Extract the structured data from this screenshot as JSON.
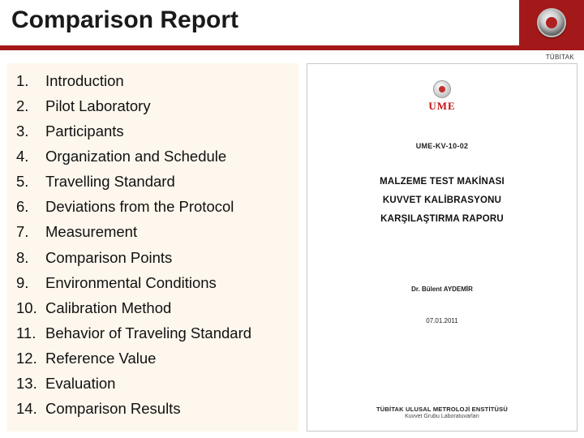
{
  "header": {
    "title": "Comparison Report",
    "org_label": "TÜBİTAK"
  },
  "colors": {
    "accent_red": "#a31919",
    "toc_background": "#fdf7ed",
    "panel_border": "#c9c9c9",
    "ume_red": "#c41414"
  },
  "toc": {
    "items": [
      {
        "num": "1.",
        "label": "Introduction"
      },
      {
        "num": "2.",
        "label": "Pilot Laboratory"
      },
      {
        "num": "3.",
        "label": "Participants"
      },
      {
        "num": "4.",
        "label": "Organization and Schedule"
      },
      {
        "num": "5.",
        "label": "Travelling Standard"
      },
      {
        "num": "6.",
        "label": "Deviations from the Protocol"
      },
      {
        "num": "7.",
        "label": "Measurement"
      },
      {
        "num": "8.",
        "label": "Comparison Points"
      },
      {
        "num": "9.",
        "label": "Environmental Conditions"
      },
      {
        "num": "10.",
        "label": "Calibration Method"
      },
      {
        "num": "11.",
        "label": "Behavior of Traveling Standard"
      },
      {
        "num": "12.",
        "label": "Reference Value"
      },
      {
        "num": "13.",
        "label": "Evaluation"
      },
      {
        "num": "14.",
        "label": "Comparison Results"
      }
    ]
  },
  "document": {
    "ume_label": "UME",
    "code": "UME-KV-10-02",
    "title_lines": [
      "MALZEME TEST MAKİNASI",
      "KUVVET KALİBRASYONU",
      "KARŞILAŞTIRMA RAPORU"
    ],
    "author": "Dr. Bülent AYDEMİR",
    "date": "07.01.2011",
    "footer_line1": "TÜBİTAK ULUSAL METROLOJİ ENSTİTÜSÜ",
    "footer_line2": "Kuvvet Grubu Laboratuvarları"
  }
}
